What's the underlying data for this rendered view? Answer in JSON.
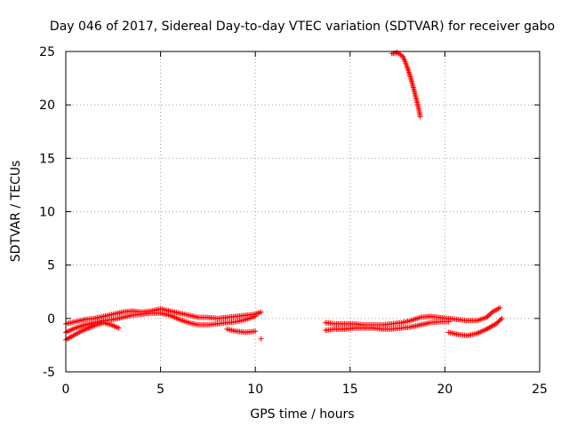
{
  "chart_data": {
    "type": "scatter",
    "title": "Day 046 of 2017, Sidereal Day-to-day VTEC variation (SDTVAR) for receiver gabo",
    "xlabel": "GPS time / hours",
    "ylabel": "SDTVAR / TECUs",
    "xlim": [
      0,
      25
    ],
    "ylim": [
      -5,
      25
    ],
    "xticks": [
      0,
      5,
      10,
      15,
      20,
      25
    ],
    "yticks": [
      -5,
      0,
      5,
      10,
      15,
      20,
      25
    ],
    "xtick_labels": [
      "0",
      "5",
      "10",
      "15",
      "20",
      "25"
    ],
    "ytick_labels": [
      "-5",
      "0",
      "5",
      "10",
      "15",
      "20",
      "25"
    ],
    "grid": true,
    "marker": "+",
    "color": "#ff0000",
    "series": [
      {
        "name": "track-a",
        "x": [
          0.0,
          0.5,
          1.0,
          1.5,
          2.0,
          2.5,
          3.0,
          3.5,
          4.0,
          4.5,
          5.0,
          5.5,
          6.0,
          6.5,
          7.0,
          7.5,
          8.0,
          8.5,
          9.0,
          9.5,
          10.0,
          10.3
        ],
        "y": [
          -0.5,
          -0.3,
          -0.1,
          0.0,
          0.2,
          0.4,
          0.6,
          0.7,
          0.6,
          0.7,
          0.9,
          0.7,
          0.5,
          0.3,
          0.1,
          0.1,
          0.0,
          0.1,
          0.2,
          0.3,
          0.4,
          0.6
        ]
      },
      {
        "name": "track-b",
        "x": [
          0.0,
          0.5,
          1.0,
          1.5,
          2.0,
          2.5,
          3.0,
          3.5,
          4.0,
          4.5,
          5.0,
          5.5,
          6.0,
          6.5,
          7.0,
          7.5,
          8.0,
          8.5,
          9.0,
          9.5,
          10.0
        ],
        "y": [
          -1.3,
          -0.9,
          -0.6,
          -0.4,
          -0.2,
          -0.1,
          0.1,
          0.3,
          0.4,
          0.5,
          0.5,
          0.3,
          -0.1,
          -0.4,
          -0.6,
          -0.6,
          -0.5,
          -0.4,
          -0.3,
          -0.1,
          0.2
        ]
      },
      {
        "name": "track-c",
        "x": [
          0.0,
          0.4,
          0.8,
          1.2,
          1.6,
          2.0,
          2.4,
          2.8
        ],
        "y": [
          -2.0,
          -1.6,
          -1.2,
          -0.9,
          -0.6,
          -0.4,
          -0.6,
          -0.9
        ]
      },
      {
        "name": "track-d",
        "x": [
          8.5,
          9.0,
          9.5,
          10.0
        ],
        "y": [
          -1.0,
          -1.2,
          -1.3,
          -1.2
        ]
      },
      {
        "name": "isolated",
        "x": [
          10.3
        ],
        "y": [
          -1.9
        ]
      },
      {
        "name": "track-e",
        "x": [
          13.7,
          14.2,
          14.7,
          15.2,
          15.7,
          16.2,
          16.7,
          17.2,
          17.7,
          18.2,
          18.7,
          19.2,
          19.7,
          20.2,
          20.7,
          21.2,
          21.7,
          22.2,
          22.5,
          22.9
        ],
        "y": [
          -0.4,
          -0.5,
          -0.5,
          -0.5,
          -0.6,
          -0.6,
          -0.6,
          -0.5,
          -0.4,
          -0.2,
          0.1,
          0.2,
          0.1,
          0.0,
          -0.1,
          -0.2,
          -0.2,
          0.1,
          0.6,
          1.0
        ]
      },
      {
        "name": "track-f",
        "x": [
          13.7,
          14.2,
          14.7,
          15.2,
          15.7,
          16.2,
          16.7,
          17.2,
          17.7,
          18.2,
          18.7,
          19.2,
          19.7,
          20.2
        ],
        "y": [
          -1.1,
          -1.0,
          -1.0,
          -0.9,
          -0.9,
          -0.9,
          -1.0,
          -1.0,
          -0.9,
          -0.8,
          -0.6,
          -0.4,
          -0.3,
          -0.3
        ]
      },
      {
        "name": "track-g",
        "x": [
          20.2,
          20.7,
          21.2,
          21.7,
          22.2,
          22.7,
          23.0
        ],
        "y": [
          -1.3,
          -1.5,
          -1.6,
          -1.4,
          -1.0,
          -0.5,
          0.0
        ]
      },
      {
        "name": "track-h",
        "x": [
          17.2,
          17.5,
          17.8,
          18.0,
          18.2,
          18.4,
          18.6,
          18.7
        ],
        "y": [
          24.8,
          24.9,
          24.5,
          23.6,
          22.5,
          21.2,
          19.8,
          18.9
        ]
      }
    ]
  }
}
